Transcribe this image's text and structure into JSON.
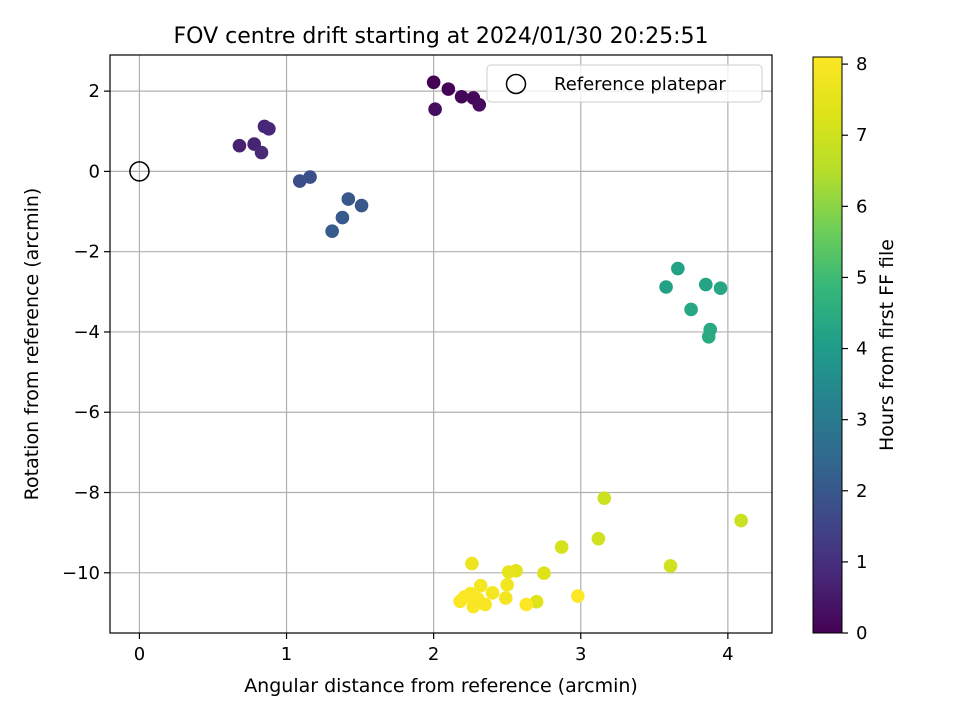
{
  "chart_data": {
    "type": "scatter",
    "title": "FOV centre drift starting at 2024/01/30 20:25:51",
    "xlabel": "Angular distance from reference (arcmin)",
    "ylabel": "Rotation from reference (arcmin)",
    "xlim": [
      -0.2,
      4.3
    ],
    "ylim": [
      -11.5,
      2.9
    ],
    "xticks": [
      0,
      1,
      2,
      3,
      4
    ],
    "yticks": [
      -10,
      -8,
      -6,
      -4,
      -2,
      0,
      2
    ],
    "grid": true,
    "legend": {
      "position": "top-right",
      "entries": [
        "Reference platepar"
      ]
    },
    "colorbar": {
      "label": "Hours from first FF file",
      "colormap": "viridis",
      "range": [
        0,
        8.1
      ],
      "ticks": [
        0,
        1,
        2,
        3,
        4,
        5,
        6,
        7,
        8
      ]
    },
    "reference_point": {
      "name": "Reference platepar",
      "x": 0,
      "y": 0
    },
    "points": [
      {
        "x": 2.0,
        "y": 2.22,
        "hours": 0.0
      },
      {
        "x": 2.1,
        "y": 2.05,
        "hours": 0.05
      },
      {
        "x": 2.19,
        "y": 1.86,
        "hours": 0.1
      },
      {
        "x": 2.27,
        "y": 1.83,
        "hours": 0.15
      },
      {
        "x": 2.31,
        "y": 1.66,
        "hours": 0.2
      },
      {
        "x": 2.01,
        "y": 1.55,
        "hours": 0.25
      },
      {
        "x": 0.68,
        "y": 0.64,
        "hours": 0.65
      },
      {
        "x": 0.78,
        "y": 0.68,
        "hours": 0.7
      },
      {
        "x": 0.85,
        "y": 1.12,
        "hours": 0.75
      },
      {
        "x": 0.88,
        "y": 1.06,
        "hours": 0.8
      },
      {
        "x": 0.83,
        "y": 0.47,
        "hours": 0.85
      },
      {
        "x": 1.09,
        "y": -0.24,
        "hours": 1.75
      },
      {
        "x": 1.16,
        "y": -0.14,
        "hours": 1.8
      },
      {
        "x": 1.42,
        "y": -0.69,
        "hours": 2.0
      },
      {
        "x": 1.51,
        "y": -0.85,
        "hours": 2.0
      },
      {
        "x": 1.38,
        "y": -1.15,
        "hours": 2.05
      },
      {
        "x": 1.31,
        "y": -1.49,
        "hours": 2.1
      },
      {
        "x": 3.58,
        "y": -2.88,
        "hours": 4.15
      },
      {
        "x": 3.66,
        "y": -2.42,
        "hours": 4.2
      },
      {
        "x": 3.85,
        "y": -2.82,
        "hours": 4.25
      },
      {
        "x": 3.95,
        "y": -2.91,
        "hours": 4.3
      },
      {
        "x": 3.75,
        "y": -3.44,
        "hours": 4.35
      },
      {
        "x": 3.88,
        "y": -3.94,
        "hours": 4.4
      },
      {
        "x": 3.87,
        "y": -4.12,
        "hours": 4.45
      },
      {
        "x": 4.09,
        "y": -8.7,
        "hours": 6.9
      },
      {
        "x": 3.16,
        "y": -8.14,
        "hours": 6.95
      },
      {
        "x": 3.12,
        "y": -9.15,
        "hours": 7.0
      },
      {
        "x": 2.87,
        "y": -9.36,
        "hours": 7.1
      },
      {
        "x": 3.61,
        "y": -9.83,
        "hours": 7.0
      },
      {
        "x": 2.75,
        "y": -10.01,
        "hours": 7.3
      },
      {
        "x": 2.7,
        "y": -10.72,
        "hours": 7.35
      },
      {
        "x": 2.56,
        "y": -9.95,
        "hours": 7.45
      },
      {
        "x": 2.51,
        "y": -9.98,
        "hours": 7.6
      },
      {
        "x": 2.26,
        "y": -9.77,
        "hours": 7.75
      },
      {
        "x": 2.5,
        "y": -10.3,
        "hours": 7.8
      },
      {
        "x": 2.49,
        "y": -10.63,
        "hours": 7.85
      },
      {
        "x": 2.32,
        "y": -10.32,
        "hours": 7.9
      },
      {
        "x": 2.4,
        "y": -10.5,
        "hours": 7.9
      },
      {
        "x": 2.35,
        "y": -10.79,
        "hours": 7.95
      },
      {
        "x": 2.27,
        "y": -10.84,
        "hours": 8.0
      },
      {
        "x": 2.3,
        "y": -10.65,
        "hours": 8.0
      },
      {
        "x": 2.25,
        "y": -10.52,
        "hours": 8.0
      },
      {
        "x": 2.21,
        "y": -10.6,
        "hours": 8.05
      },
      {
        "x": 2.18,
        "y": -10.71,
        "hours": 8.05
      },
      {
        "x": 2.63,
        "y": -10.79,
        "hours": 8.1
      },
      {
        "x": 2.98,
        "y": -10.58,
        "hours": 8.1
      }
    ]
  }
}
